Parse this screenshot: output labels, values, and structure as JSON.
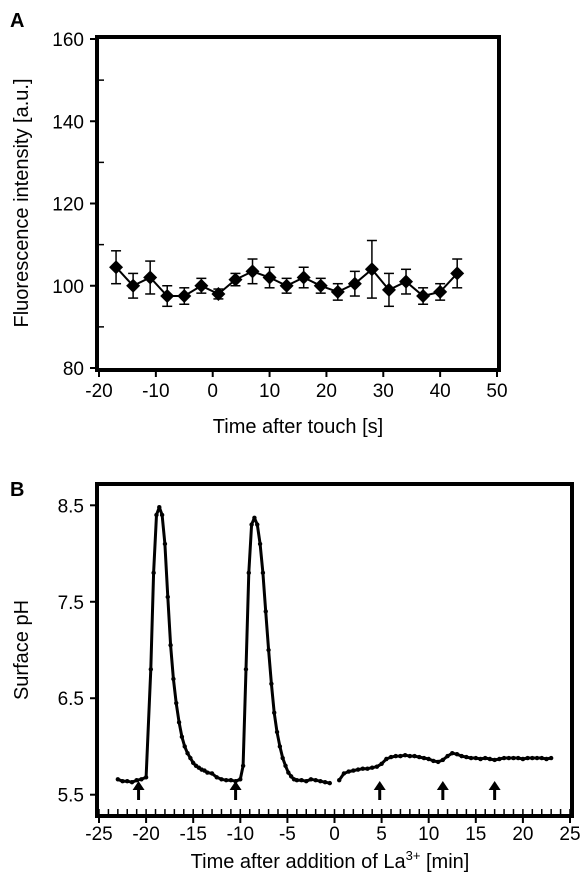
{
  "chart_data": [
    {
      "panel": "A",
      "type": "line",
      "title": "",
      "xlabel": "Time after touch [s]",
      "ylabel": "Fluorescence intensity [a.u.]",
      "xlim": [
        -20,
        50
      ],
      "ylim": [
        80,
        160
      ],
      "xticks": [
        -20,
        -10,
        0,
        10,
        20,
        30,
        40,
        50
      ],
      "yticks": [
        80,
        100,
        120,
        140,
        160
      ],
      "x_tick_labels": [
        "-20",
        "-10",
        "0",
        "10",
        "20",
        "30",
        "40",
        "50"
      ],
      "y_tick_labels": [
        "80",
        "100",
        "120",
        "140",
        "160"
      ],
      "grid": false,
      "marker": "diamond",
      "series": [
        {
          "x": [
            -17,
            -14,
            -11,
            -8,
            -5,
            -2,
            1,
            4,
            7,
            10,
            13,
            16,
            19,
            22,
            25,
            28,
            31,
            34,
            37,
            40,
            43
          ],
          "y": [
            104.5,
            100,
            102,
            97.5,
            97.5,
            100,
            98,
            101.5,
            103.5,
            102,
            100,
            102,
            100,
            98.5,
            100.5,
            104,
            99,
            101,
            97.5,
            98.5,
            103
          ],
          "error": [
            4,
            3,
            4,
            2.5,
            2,
            1.8,
            1.2,
            1.5,
            3,
            2.5,
            1.8,
            2.5,
            1.8,
            2,
            3,
            7,
            4,
            3,
            2,
            2,
            3.5
          ]
        }
      ]
    },
    {
      "panel": "B",
      "type": "line",
      "title": "",
      "xlabel": "Time after addition of La",
      "xlabel_superscript": "3+",
      "xlabel_suffix": " [min]",
      "ylabel": "Surface pH",
      "xlim": [
        -25,
        25
      ],
      "ylim": [
        5.3,
        8.7
      ],
      "xticks": [
        -25,
        -20,
        -15,
        -10,
        -5,
        0,
        5,
        10,
        15,
        20,
        25
      ],
      "yticks": [
        5.5,
        6.5,
        7.5,
        8.5
      ],
      "x_tick_labels": [
        "-25",
        "-20",
        "-15",
        "-10",
        "-5",
        "0",
        "5",
        "10",
        "15",
        "20",
        "25"
      ],
      "y_tick_labels": [
        "5.5",
        "6.5",
        "7.5",
        "8.5"
      ],
      "grid": false,
      "marker": "dot",
      "series": [
        {
          "x": [
            -23.0,
            -22.5,
            -22.0,
            -21.5,
            -21.0,
            -20.5,
            -20.0,
            -19.5,
            -19.2,
            -18.9,
            -18.6,
            -18.3,
            -18.0,
            -17.7,
            -17.4,
            -17.1,
            -16.8,
            -16.5,
            -16.2,
            -15.9,
            -15.6,
            -15.3,
            -15.0,
            -14.7,
            -14.4,
            -14.1,
            -13.8,
            -13.5,
            -13.0,
            -12.5,
            -12.0,
            -11.5,
            -11.0,
            -10.5,
            -10.0,
            -9.7,
            -9.4,
            -9.1,
            -8.8,
            -8.5,
            -8.2,
            -7.9,
            -7.6,
            -7.3,
            -7.0,
            -6.7,
            -6.4,
            -6.1,
            -5.8,
            -5.5,
            -5.2,
            -4.9,
            -4.6,
            -4.3,
            -4.0,
            -3.5,
            -3.0,
            -2.5,
            -2.0,
            -1.5,
            -1.0,
            -0.5
          ],
          "y": [
            5.66,
            5.64,
            5.64,
            5.63,
            5.65,
            5.66,
            5.68,
            6.8,
            7.8,
            8.4,
            8.48,
            8.4,
            8.1,
            7.55,
            7.05,
            6.7,
            6.45,
            6.25,
            6.1,
            6.0,
            5.93,
            5.88,
            5.83,
            5.8,
            5.78,
            5.76,
            5.75,
            5.73,
            5.72,
            5.68,
            5.66,
            5.65,
            5.65,
            5.64,
            5.66,
            5.8,
            6.8,
            7.8,
            8.3,
            8.37,
            8.3,
            8.1,
            7.8,
            7.4,
            7.0,
            6.65,
            6.35,
            6.15,
            6.0,
            5.88,
            5.8,
            5.73,
            5.69,
            5.66,
            5.65,
            5.65,
            5.64,
            5.66,
            5.65,
            5.64,
            5.63,
            5.62
          ]
        },
        {
          "x": [
            0.5,
            1.0,
            1.5,
            2.0,
            2.5,
            3.0,
            3.5,
            4.0,
            4.5,
            5.0,
            5.5,
            6.0,
            6.5,
            7.0,
            7.5,
            8.0,
            8.5,
            9.0,
            9.5,
            10.0,
            10.5,
            11.0,
            11.5,
            12.0,
            12.5,
            13.0,
            13.5,
            14.0,
            14.5,
            15.0,
            15.5,
            16.0,
            16.5,
            17.0,
            17.5,
            18.0,
            18.5,
            19.0,
            19.5,
            20.0,
            20.5,
            21.0,
            21.5,
            22.0,
            22.5,
            23.0
          ],
          "y": [
            5.65,
            5.72,
            5.74,
            5.75,
            5.76,
            5.77,
            5.77,
            5.78,
            5.79,
            5.82,
            5.87,
            5.89,
            5.9,
            5.9,
            5.91,
            5.9,
            5.9,
            5.89,
            5.88,
            5.87,
            5.85,
            5.84,
            5.86,
            5.9,
            5.93,
            5.92,
            5.9,
            5.89,
            5.88,
            5.88,
            5.87,
            5.88,
            5.87,
            5.86,
            5.87,
            5.88,
            5.88,
            5.88,
            5.88,
            5.87,
            5.88,
            5.88,
            5.88,
            5.88,
            5.87,
            5.88
          ]
        }
      ],
      "arrows_x": [
        -20.8,
        -10.5,
        4.8,
        11.5,
        17.0
      ]
    }
  ]
}
